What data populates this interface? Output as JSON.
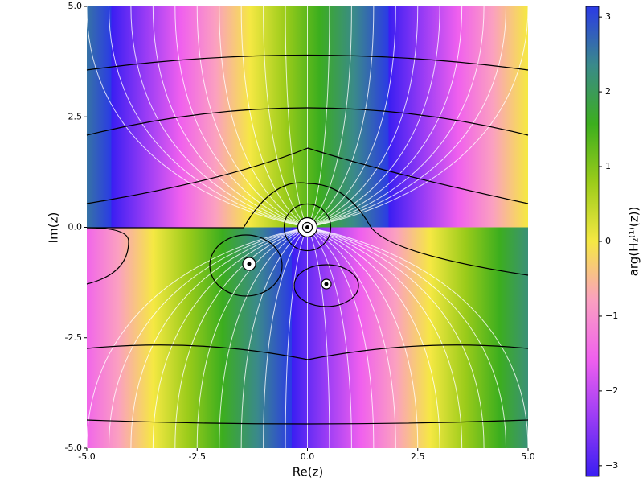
{
  "chart_data": {
    "type": "heatmap",
    "xlabel": "Re(z)",
    "ylabel": "Im(z)",
    "colorbar_label": "arg(H₂⁽¹⁾(z))",
    "xlim": [
      -5,
      5
    ],
    "ylim": [
      -5,
      5
    ],
    "xticks": [
      {
        "value": -5,
        "label": "-5.0"
      },
      {
        "value": -2.5,
        "label": "-2.5"
      },
      {
        "value": 0,
        "label": "0.0"
      },
      {
        "value": 2.5,
        "label": "2.5"
      },
      {
        "value": 5,
        "label": "5.0"
      }
    ],
    "yticks": [
      {
        "value": -5,
        "label": "-5.0"
      },
      {
        "value": -2.5,
        "label": "-2.5"
      },
      {
        "value": 0,
        "label": "0.0"
      },
      {
        "value": 2.5,
        "label": "2.5"
      },
      {
        "value": 5,
        "label": "5.0"
      }
    ],
    "clim": [
      -3.1416,
      3.1416
    ],
    "cticks": [
      {
        "value": -3,
        "label": "−3"
      },
      {
        "value": -2,
        "label": "−2"
      },
      {
        "value": -1,
        "label": "−1"
      },
      0,
      1,
      2,
      3
    ],
    "colormap": [
      "#3a1ef2",
      "#9a3cf5",
      "#f060ee",
      "#fba0c0",
      "#f5e843",
      "#9ccc1a",
      "#3cae1e",
      "#3a8a8a",
      "#2b3ae6"
    ]
  }
}
